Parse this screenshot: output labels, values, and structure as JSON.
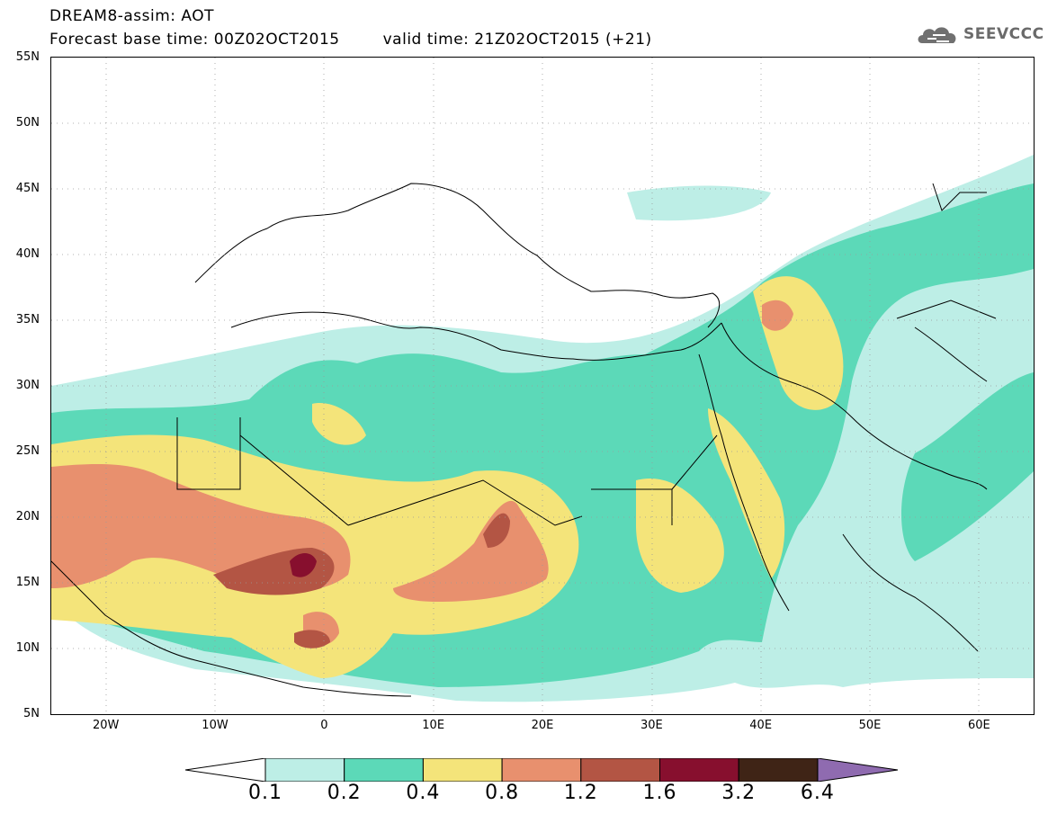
{
  "header": {
    "title": "DREAM8-assim: AOT",
    "base_time": "Forecast base time: 00Z02OCT2015",
    "valid_time": "valid time: 21Z02OCT2015 (+21)"
  },
  "logo": {
    "text": "SEEVCCC",
    "icon": "cloud-icon"
  },
  "map": {
    "lat_labels": [
      "55N",
      "50N",
      "45N",
      "40N",
      "35N",
      "30N",
      "25N",
      "20N",
      "15N",
      "10N",
      "5N"
    ],
    "lon_labels": [
      "20W",
      "10W",
      "0",
      "10E",
      "20E",
      "30E",
      "40E",
      "50E",
      "60E"
    ],
    "extent": {
      "lon_min": -25,
      "lon_max": 65,
      "lat_min": 5,
      "lat_max": 55
    }
  },
  "colorbar": {
    "labels": [
      "0.1",
      "0.2",
      "0.4",
      "0.8",
      "1.2",
      "1.6",
      "3.2",
      "6.4"
    ],
    "colors": [
      "#ffffff",
      "#bdeee6",
      "#5cd9b8",
      "#f4e47a",
      "#e8906e",
      "#b35544",
      "#870f2e",
      "#3f2416",
      "#8f6bb0"
    ]
  }
}
